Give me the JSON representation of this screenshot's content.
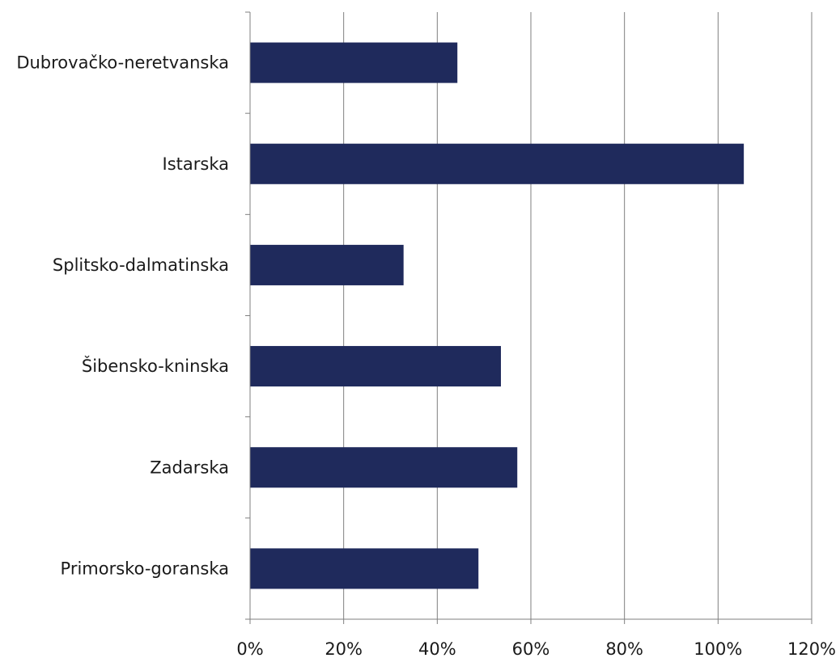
{
  "chart_data": {
    "type": "bar",
    "orientation": "horizontal",
    "categories": [
      "Dubrovačko-neretvanska",
      "Istarska",
      "Splitsko-dalmatinska",
      "Šibensko-kninska",
      "Zadarska",
      "Primorsko-goranska"
    ],
    "values": [
      44.3,
      105.5,
      32.8,
      53.6,
      57.1,
      48.8
    ],
    "x_ticks": [
      "0%",
      "20%",
      "40%",
      "60%",
      "80%",
      "100%",
      "120%"
    ],
    "xlim": [
      0,
      120
    ],
    "unit": "%",
    "grid": true,
    "legend": "none",
    "bar_color": "#1f2a5c",
    "title": "",
    "xlabel": "",
    "ylabel": ""
  }
}
